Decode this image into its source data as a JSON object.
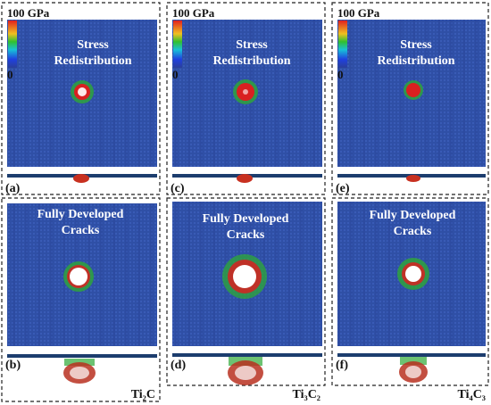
{
  "colorbar": {
    "max_label": "100 GPa",
    "min_label": "0",
    "colors": [
      "#e02020",
      "#f0d020",
      "#20c030",
      "#18c8d8",
      "#2040e0",
      "#2a3f9a"
    ]
  },
  "colors": {
    "background_atoms": "#2f4fa6",
    "stress_high": "#d92020",
    "stress_mid": "#2ea836",
    "crack_void": "#ffffff",
    "side_strip": "#1c3d6e"
  },
  "columns": [
    {
      "material": "Ti₂C",
      "top": {
        "label": "(a)",
        "text_line1": "Stress",
        "text_line2": "Redistribution",
        "spot_size": 0.35
      },
      "bottom": {
        "label": "(b)",
        "text_line1": "Fully Developed",
        "text_line2": "Cracks",
        "spot_size": 0.5
      }
    },
    {
      "material": "Ti₃C₂",
      "top": {
        "label": "(c)",
        "text_line1": "Stress",
        "text_line2": "Redistribution",
        "spot_size": 0.4
      },
      "bottom": {
        "label": "(d)",
        "text_line1": "Fully Developed",
        "text_line2": "Cracks",
        "spot_size": 0.75
      }
    },
    {
      "material": "Ti₄C₃",
      "top": {
        "label": "(e)",
        "text_line1": "Stress",
        "text_line2": "Redistribution",
        "spot_size": 0.3
      },
      "bottom": {
        "label": "(f)",
        "text_line1": "Fully Developed",
        "text_line2": "Cracks",
        "spot_size": 0.5
      }
    }
  ]
}
